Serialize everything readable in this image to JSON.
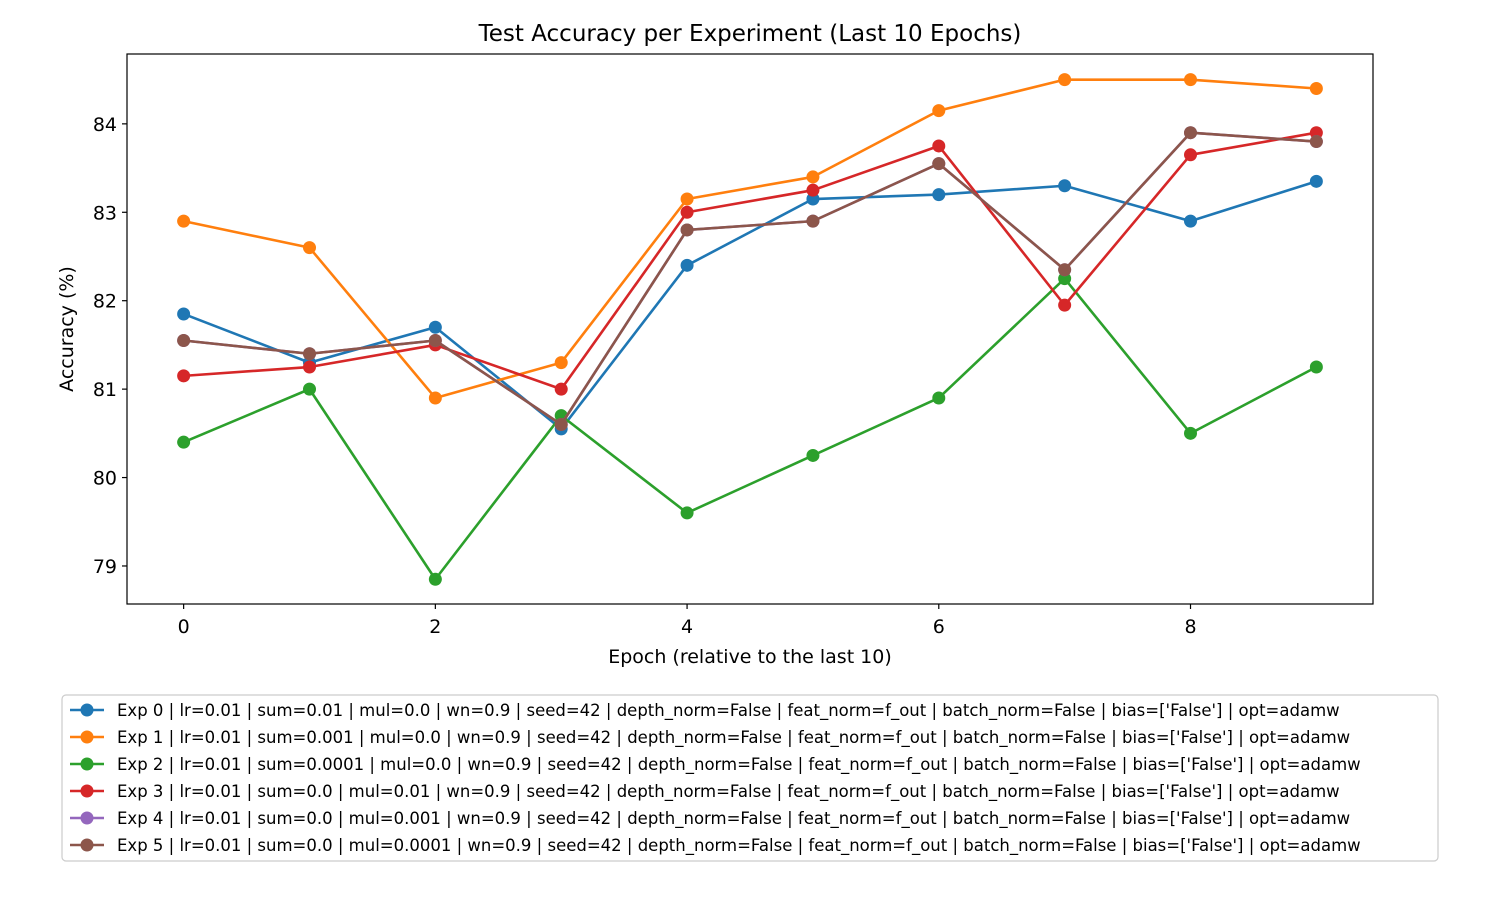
{
  "chart_data": {
    "type": "line",
    "title": "Test Accuracy per Experiment (Last 10 Epochs)",
    "xlabel": "Epoch (relative to the last 10)",
    "ylabel": "Accuracy (%)",
    "x": [
      0,
      1,
      2,
      3,
      4,
      5,
      6,
      7,
      8,
      9
    ],
    "xlim": [
      -0.45,
      9.45
    ],
    "ylim": [
      78.57,
      84.79
    ],
    "xticks": [
      0,
      2,
      4,
      6,
      8
    ],
    "yticks": [
      79,
      80,
      81,
      82,
      83,
      84
    ],
    "grid": false,
    "legend_position": "bottom",
    "series": [
      {
        "name": "Exp 0 | lr=0.01 | sum=0.01 | mul=0.0 | wn=0.9 | seed=42 | depth_norm=False | feat_norm=f_out | batch_norm=False | bias=['False'] | opt=adamw",
        "color": "#1f77b4",
        "values": [
          81.85,
          81.3,
          81.7,
          80.55,
          82.4,
          83.15,
          83.2,
          83.3,
          82.9,
          83.35
        ]
      },
      {
        "name": "Exp 1 | lr=0.01 | sum=0.001 | mul=0.0 | wn=0.9 | seed=42 | depth_norm=False | feat_norm=f_out | batch_norm=False | bias=['False'] | opt=adamw",
        "color": "#ff7f0e",
        "values": [
          82.9,
          82.6,
          80.9,
          81.3,
          83.15,
          83.4,
          84.15,
          84.5,
          84.5,
          84.4
        ]
      },
      {
        "name": "Exp 2 | lr=0.01 | sum=0.0001 | mul=0.0 | wn=0.9 | seed=42 | depth_norm=False | feat_norm=f_out | batch_norm=False | bias=['False'] | opt=adamw",
        "color": "#2ca02c",
        "values": [
          80.4,
          81.0,
          78.85,
          80.7,
          79.6,
          80.25,
          80.9,
          82.25,
          80.5,
          81.25
        ]
      },
      {
        "name": "Exp 3 | lr=0.01 | sum=0.0 | mul=0.01 | wn=0.9 | seed=42 | depth_norm=False | feat_norm=f_out | batch_norm=False | bias=['False'] | opt=adamw",
        "color": "#d62728",
        "values": [
          81.15,
          81.25,
          81.5,
          81.0,
          83.0,
          83.25,
          83.75,
          81.95,
          83.65,
          83.9
        ]
      },
      {
        "name": "Exp 4 | lr=0.01 | sum=0.0 | mul=0.001 | wn=0.9 | seed=42 | depth_norm=False | feat_norm=f_out | batch_norm=False | bias=['False'] | opt=adamw",
        "color": "#9467bd",
        "values": [
          81.55,
          81.4,
          81.55,
          80.6,
          82.8,
          82.9,
          83.55,
          82.35,
          83.9,
          83.8
        ]
      },
      {
        "name": "Exp 5 | lr=0.01 | sum=0.0 | mul=0.0001 | wn=0.9 | seed=42 | depth_norm=False | feat_norm=f_out | batch_norm=False | bias=['False'] | opt=adamw",
        "color": "#8c564b",
        "values": [
          81.55,
          81.4,
          81.55,
          80.6,
          82.8,
          82.9,
          83.55,
          82.35,
          83.9,
          83.8
        ]
      }
    ]
  }
}
